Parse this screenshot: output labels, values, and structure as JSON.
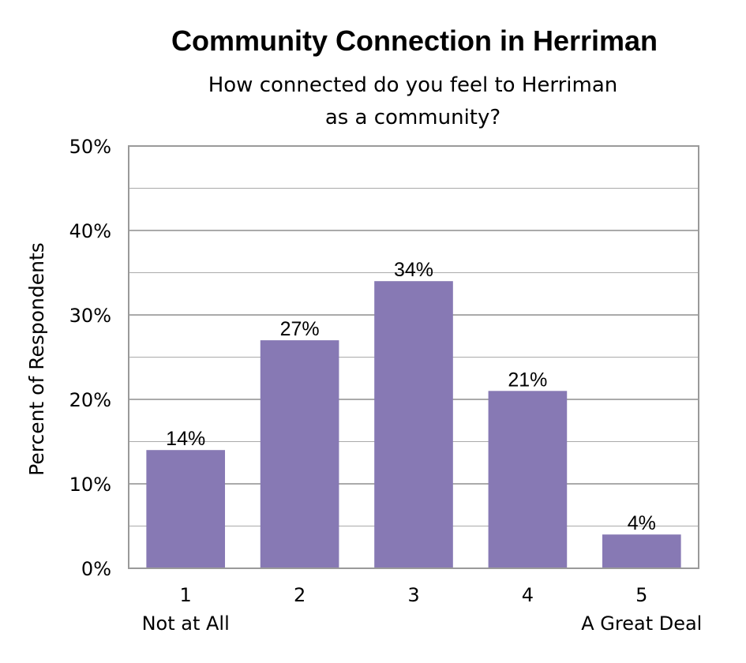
{
  "chart_data": {
    "type": "bar",
    "title": "Community Connection in Herriman",
    "subtitle_lines": [
      "How connected do you feel to Herriman",
      "as a community?"
    ],
    "ylabel": "Percent of Respondents",
    "xlabel": "",
    "categories": [
      "1",
      "2",
      "3",
      "4",
      "5"
    ],
    "category_sublabels": [
      "Not at All",
      "",
      "",
      "",
      "A Great Deal"
    ],
    "values": [
      14,
      27,
      34,
      21,
      4
    ],
    "data_labels": [
      "14%",
      "27%",
      "34%",
      "21%",
      "4%"
    ],
    "ylim": [
      0,
      50
    ],
    "yticks": [
      0,
      10,
      20,
      30,
      40,
      50
    ],
    "ytick_labels": [
      "0%",
      "10%",
      "20%",
      "30%",
      "40%",
      "50%"
    ],
    "grid": true,
    "bar_color": "#8779B4",
    "grid_color": "#AAAAAA"
  }
}
